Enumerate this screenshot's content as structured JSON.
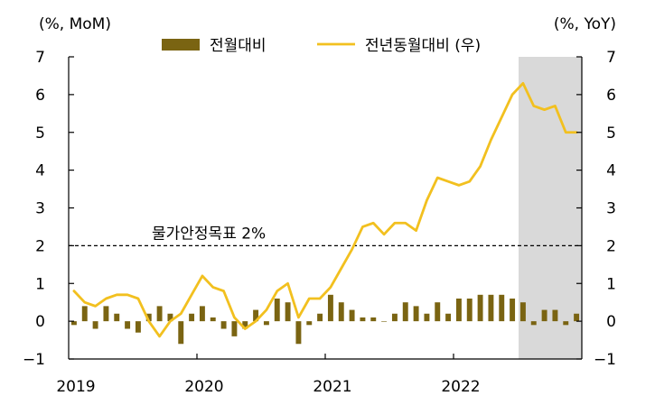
{
  "chart_data": {
    "type": "bar+line",
    "left_axis_label": "(%, MoM)",
    "right_axis_label": "(%, YoY)",
    "ylim": [
      -1,
      7
    ],
    "yticks": [
      "7",
      "6",
      "5",
      "4",
      "3",
      "2",
      "1",
      "0",
      "−1"
    ],
    "xtick_labels": [
      "2019",
      "2020",
      "2021",
      "2022"
    ],
    "months": 48,
    "series": [
      {
        "name": "전월대비",
        "type": "bar",
        "axis": "left",
        "color": "#7a6412",
        "values": [
          -0.1,
          0.4,
          -0.2,
          0.4,
          0.2,
          -0.2,
          -0.3,
          0.2,
          0.4,
          0.2,
          -0.6,
          0.2,
          0.4,
          0.1,
          -0.2,
          -0.4,
          -0.2,
          0.3,
          -0.1,
          0.6,
          0.5,
          -0.6,
          -0.1,
          0.2,
          0.7,
          0.5,
          0.3,
          0.1,
          0.1,
          0.0,
          0.2,
          0.5,
          0.4,
          0.2,
          0.5,
          0.2,
          0.6,
          0.6,
          0.7,
          0.7,
          0.7,
          0.6,
          0.5,
          -0.1,
          0.3,
          0.3,
          -0.1,
          0.2
        ]
      },
      {
        "name": "전년동월대비 (우)",
        "type": "line",
        "axis": "right",
        "color": "#f2c01f",
        "values": [
          0.8,
          0.5,
          0.4,
          0.6,
          0.7,
          0.7,
          0.6,
          0.0,
          -0.4,
          0.0,
          0.2,
          0.7,
          1.2,
          0.9,
          0.8,
          0.1,
          -0.2,
          0.0,
          0.3,
          0.8,
          1.0,
          0.1,
          0.6,
          0.6,
          0.9,
          1.4,
          1.9,
          2.5,
          2.6,
          2.3,
          2.6,
          2.6,
          2.4,
          3.2,
          3.8,
          3.7,
          3.6,
          3.7,
          4.1,
          4.8,
          5.4,
          6.0,
          6.3,
          5.7,
          5.6,
          5.7,
          5.0,
          5.0
        ]
      }
    ],
    "annotations": [
      {
        "text": "물가안정목표 2%",
        "value": 2,
        "style": "dashed"
      }
    ],
    "shaded_region": {
      "from_month": 42,
      "to_month": 47,
      "color": "#d9d9d9"
    },
    "legend_position": "top-center"
  }
}
